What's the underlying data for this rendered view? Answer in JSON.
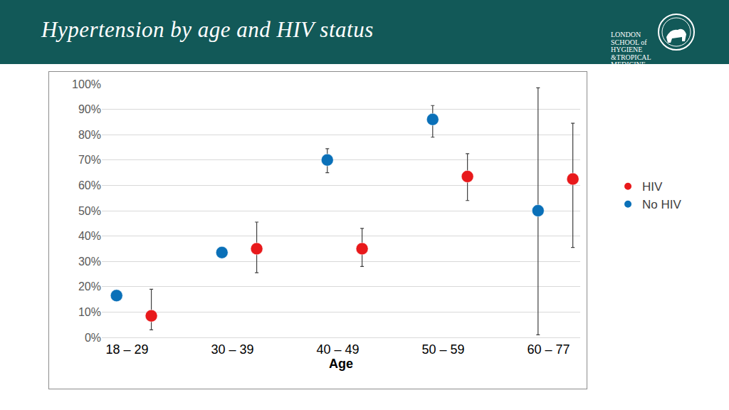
{
  "logo": [
    "LONDON",
    "SCHOOL of",
    "HYGIENE",
    "&TROPICAL",
    "MEDICINE"
  ],
  "chart_data": {
    "type": "scatter",
    "title": "Hypertension by age and HIV status",
    "x_label": "Age",
    "categories": [
      "18 – 29",
      "30 – 39",
      "40 – 49",
      "50 – 59",
      "60 – 77"
    ],
    "series": [
      {
        "name": "HIV",
        "color": "#e8191b",
        "values": [
          8.5,
          35,
          35,
          63.5,
          62.5
        ],
        "error_minus": [
          5.5,
          9.5,
          7,
          9.5,
          27
        ],
        "error_plus": [
          10.5,
          10.5,
          8,
          9,
          22
        ]
      },
      {
        "name": "No HIV",
        "color": "#0a70b8",
        "values": [
          16.5,
          33.5,
          70,
          86,
          50
        ],
        "error_minus": [
          1,
          1,
          5,
          7,
          49
        ],
        "error_plus": [
          2,
          2,
          4.5,
          5.5,
          48.5
        ]
      }
    ],
    "ylim": [
      0,
      100
    ],
    "yticks": [
      {
        "value": 0,
        "label": "0%"
      },
      {
        "value": 10,
        "label": "10%"
      },
      {
        "value": 20,
        "label": "20%"
      },
      {
        "value": 30,
        "label": "30%"
      },
      {
        "value": 40,
        "label": "40%"
      },
      {
        "value": 50,
        "label": "50%"
      },
      {
        "value": 60,
        "label": "60%"
      },
      {
        "value": 70,
        "label": "70%"
      },
      {
        "value": 80,
        "label": "80%"
      },
      {
        "value": 90,
        "label": "90%"
      },
      {
        "value": 100,
        "label": "100%"
      }
    ],
    "grid": true,
    "legend": "right",
    "marker": "circle"
  }
}
